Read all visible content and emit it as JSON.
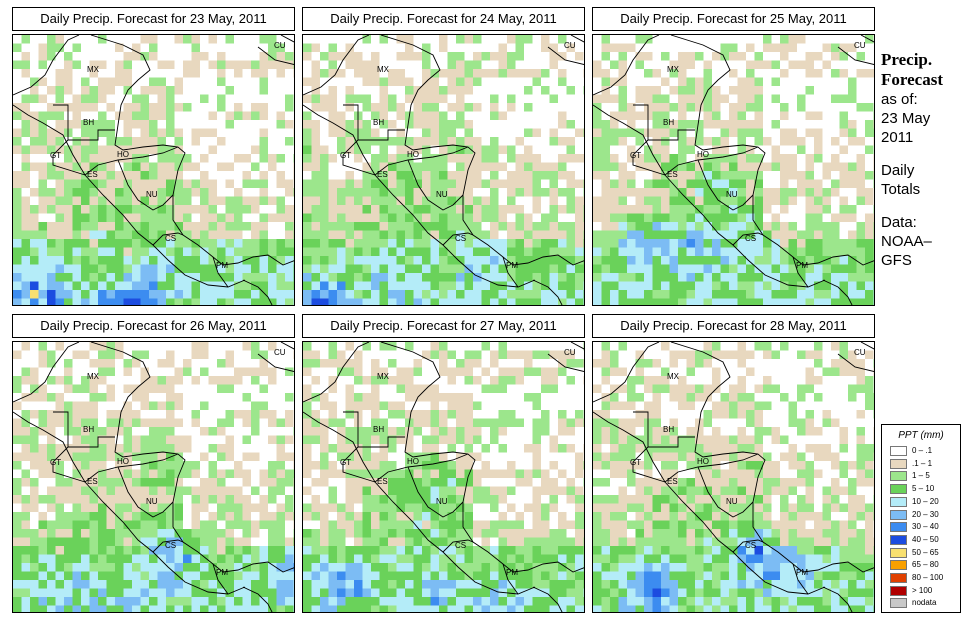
{
  "panels": [
    {
      "title": "Daily Precip. Forecast for  23 May, 2011",
      "seed": 11,
      "heavy": [
        [
          30,
          255,
          3.2
        ],
        [
          120,
          270,
          3.0
        ],
        [
          95,
          285,
          2.4
        ],
        [
          150,
          240,
          1.4
        ]
      ]
    },
    {
      "title": "Daily Precip. Forecast for  24 May, 2011",
      "seed": 23,
      "heavy": [
        [
          20,
          270,
          3.6
        ],
        [
          90,
          240,
          1.5
        ],
        [
          180,
          230,
          1.6
        ]
      ]
    },
    {
      "title": "Daily Precip. Forecast for  25 May, 2011",
      "seed": 37,
      "heavy": [
        [
          50,
          210,
          3.0
        ],
        [
          100,
          215,
          2.2
        ],
        [
          150,
          205,
          1.6
        ],
        [
          120,
          150,
          1.2
        ]
      ]
    },
    {
      "title": "Daily Precip. Forecast for  26 May, 2011",
      "seed": 41,
      "heavy": [
        [
          160,
          215,
          2.6
        ],
        [
          280,
          230,
          2.8
        ],
        [
          60,
          245,
          1.6
        ],
        [
          120,
          265,
          1.4
        ]
      ]
    },
    {
      "title": "Daily Precip. Forecast for  27 May, 2011",
      "seed": 53,
      "heavy": [
        [
          40,
          240,
          2.6
        ],
        [
          130,
          150,
          1.8
        ],
        [
          130,
          255,
          1.4
        ],
        [
          200,
          250,
          1.2
        ]
      ]
    },
    {
      "title": "Daily Precip. Forecast for  28 May, 2011",
      "seed": 67,
      "heavy": [
        [
          60,
          245,
          3.4
        ],
        [
          165,
          210,
          3.6
        ],
        [
          200,
          230,
          1.6
        ],
        [
          270,
          110,
          1.4
        ]
      ]
    }
  ],
  "country_labels": [
    "MX",
    "BH",
    "GT",
    "HO",
    "ES",
    "NU",
    "CS",
    "PM",
    "CU"
  ],
  "sidebar": {
    "title1": "Precip.",
    "title2": "Forecast",
    "asof": "as of:",
    "date1": "23 May",
    "date2": "2011",
    "totals1": "Daily",
    "totals2": "Totals",
    "data1": "Data:",
    "data2": "NOAA–",
    "data3": "GFS"
  },
  "legend": {
    "title": "PPT (mm)",
    "items": [
      {
        "label": "0 – .1",
        "color": "#ffffff"
      },
      {
        "label": ".1 – 1",
        "color": "#e8d8bf"
      },
      {
        "label": "1 – 5",
        "color": "#9ce68c"
      },
      {
        "label": "5 – 10",
        "color": "#6ad25a"
      },
      {
        "label": "10 – 20",
        "color": "#b4ecf8"
      },
      {
        "label": "20 – 30",
        "color": "#7cbcf4"
      },
      {
        "label": "30 – 40",
        "color": "#3c8cf0"
      },
      {
        "label": "40 – 50",
        "color": "#1c4ce0"
      },
      {
        "label": "50 – 65",
        "color": "#f8e070"
      },
      {
        "label": "65 – 80",
        "color": "#f8a000"
      },
      {
        "label": "80 – 100",
        "color": "#e04000"
      },
      {
        "label": "> 100",
        "color": "#b00000"
      },
      {
        "label": "nodata",
        "color": "#c8c8c8"
      }
    ]
  }
}
